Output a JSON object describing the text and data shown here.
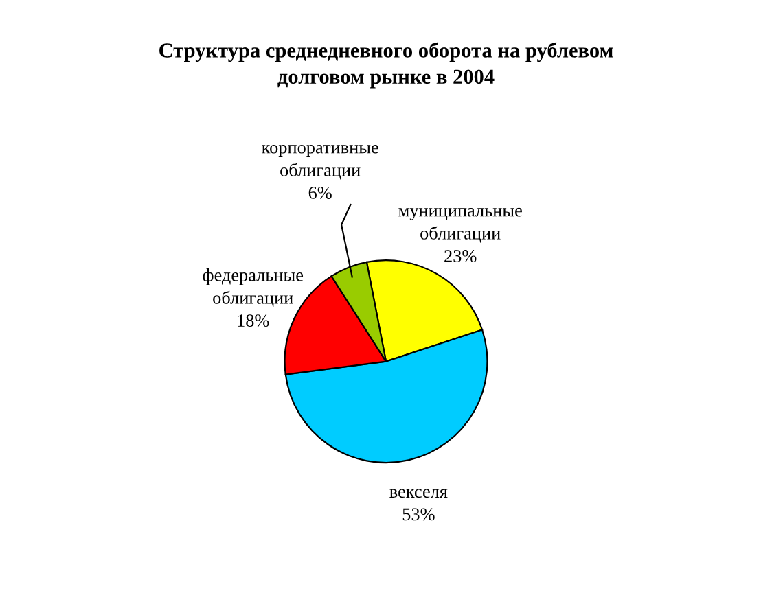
{
  "chart_data": {
    "type": "pie",
    "title": "Структура среднедневного оборота на рублевом\nдолговом рынке в 2004",
    "categories": [
      "муниципальные\nоблигации",
      "векселя",
      "федеральные\nоблигации",
      "корпоративные\nоблигации"
    ],
    "values": [
      23,
      53,
      18,
      6
    ],
    "value_labels": [
      "23%",
      "53%",
      "18%",
      "6%"
    ],
    "colors": [
      "#ffff00",
      "#00ccff",
      "#ff0000",
      "#99cc00"
    ],
    "legend": false
  }
}
